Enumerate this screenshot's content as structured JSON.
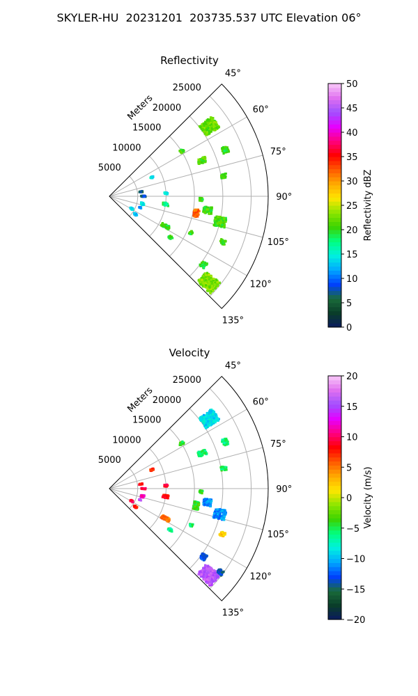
{
  "figure": {
    "title": "SKYLER-HU  20231201  203735.537 UTC Elevation 06°",
    "colors": {
      "grid": "#b0b0b0",
      "frame": "#000000",
      "background": "#ffffff"
    }
  },
  "chart_data": [
    {
      "type": "polar-sector",
      "title": "Reflectivity",
      "radial_axis_label": "Meters",
      "radial_ticks": [
        5000,
        10000,
        15000,
        20000,
        25000
      ],
      "radial_tick_labels": [
        "5000",
        "10000",
        "15000",
        "20000",
        "25000"
      ],
      "rlim": [
        0,
        28000
      ],
      "theta_range_deg": [
        45,
        135
      ],
      "theta_ticks": [
        45,
        60,
        75,
        90,
        105,
        120,
        135
      ],
      "theta_tick_labels": [
        "45°",
        "60°",
        "75°",
        "90°",
        "105°",
        "120°",
        "135°"
      ],
      "grid": true,
      "colorbar": {
        "label": "Reflectivity dBZ",
        "range": [
          0,
          50
        ],
        "ticks": [
          0,
          5,
          10,
          15,
          20,
          25,
          30,
          35,
          40,
          45,
          50
        ],
        "tick_labels": [
          "0",
          "5",
          "10",
          "15",
          "20",
          "25",
          "30",
          "35",
          "40",
          "45",
          "50"
        ],
        "colormap_stops": [
          "#0a1a5e",
          "#0a3d2a",
          "#1a6b3a",
          "#0040ff",
          "#00a8ff",
          "#00f0e0",
          "#00ff80",
          "#3cd200",
          "#8ce600",
          "#ffe600",
          "#ffaa00",
          "#ff5a00",
          "#ff0000",
          "#ff0080",
          "#e600ff",
          "#a050ff",
          "#e070f0",
          "#f8c8f8"
        ]
      },
      "echoes": [
        {
          "az": 55,
          "r": 21500,
          "dr": 2800,
          "daz": 6,
          "value": 22
        },
        {
          "az": 68,
          "r": 22000,
          "dr": 1000,
          "daz": 3,
          "value": 20
        },
        {
          "az": 58,
          "r": 15000,
          "dr": 800,
          "daz": 2,
          "value": 21
        },
        {
          "az": 69,
          "r": 17500,
          "dr": 1500,
          "daz": 3,
          "value": 21
        },
        {
          "az": 80,
          "r": 20500,
          "dr": 1000,
          "daz": 2,
          "value": 20
        },
        {
          "az": 92,
          "r": 16200,
          "dr": 600,
          "daz": 2,
          "value": 20
        },
        {
          "az": 98,
          "r": 17500,
          "dr": 1500,
          "daz": 4,
          "value": 21
        },
        {
          "az": 103,
          "r": 20000,
          "dr": 2000,
          "daz": 5,
          "value": 21
        },
        {
          "az": 101,
          "r": 15600,
          "dr": 1000,
          "daz": 5,
          "value": 32
        },
        {
          "az": 114,
          "r": 15800,
          "dr": 600,
          "daz": 2,
          "value": 20
        },
        {
          "az": 112,
          "r": 21500,
          "dr": 1000,
          "daz": 2,
          "value": 21
        },
        {
          "az": 126,
          "r": 20500,
          "dr": 1000,
          "daz": 3,
          "value": 20
        },
        {
          "az": 131,
          "r": 23200,
          "dr": 3200,
          "daz": 6,
          "value": 23
        },
        {
          "az": 118,
          "r": 11200,
          "dr": 1500,
          "daz": 3,
          "value": 20
        },
        {
          "az": 98,
          "r": 10000,
          "dr": 1000,
          "daz": 3,
          "value": 18
        },
        {
          "az": 87,
          "r": 10000,
          "dr": 600,
          "daz": 2,
          "value": 14
        },
        {
          "az": 66,
          "r": 8200,
          "dr": 600,
          "daz": 2,
          "value": 14
        },
        {
          "az": 103,
          "r": 6000,
          "dr": 600,
          "daz": 4,
          "value": 14
        },
        {
          "az": 110,
          "r": 5800,
          "dr": 400,
          "daz": 2,
          "value": 12
        },
        {
          "az": 119,
          "r": 4500,
          "dr": 600,
          "daz": 3,
          "value": 13
        },
        {
          "az": 90,
          "r": 6000,
          "dr": 800,
          "daz": 2,
          "value": 8
        },
        {
          "az": 82,
          "r": 5600,
          "dr": 600,
          "daz": 2,
          "value": 7
        },
        {
          "az": 125,
          "r": 5600,
          "dr": 600,
          "daz": 3,
          "value": 12
        },
        {
          "az": 124,
          "r": 13000,
          "dr": 800,
          "daz": 2,
          "value": 20
        }
      ]
    },
    {
      "type": "polar-sector",
      "title": "Velocity",
      "radial_axis_label": "Meters",
      "radial_ticks": [
        5000,
        10000,
        15000,
        20000,
        25000
      ],
      "radial_tick_labels": [
        "5000",
        "10000",
        "15000",
        "20000",
        "25000"
      ],
      "rlim": [
        0,
        28000
      ],
      "theta_range_deg": [
        45,
        135
      ],
      "theta_ticks": [
        45,
        60,
        75,
        90,
        105,
        120,
        135
      ],
      "theta_tick_labels": [
        "45°",
        "60°",
        "75°",
        "90°",
        "105°",
        "120°",
        "135°"
      ],
      "grid": true,
      "colorbar": {
        "label": "Velocity (m/s)",
        "range": [
          -20,
          20
        ],
        "ticks": [
          -20,
          -15,
          -10,
          -5,
          0,
          5,
          10,
          15,
          20
        ],
        "tick_labels": [
          "−20",
          "−15",
          "−10",
          "−5",
          "0",
          "5",
          "10",
          "15",
          "20"
        ],
        "colormap_stops": [
          "#0a1a5e",
          "#0a3d2a",
          "#1a6b3a",
          "#0040ff",
          "#00a8ff",
          "#00f0e0",
          "#00ff80",
          "#3cd200",
          "#8ce600",
          "#ffe600",
          "#ffaa00",
          "#ff5a00",
          "#ff0000",
          "#ff0080",
          "#e600ff",
          "#a050ff",
          "#e070f0",
          "#f8c8f8"
        ]
      },
      "echoes": [
        {
          "az": 55,
          "r": 21500,
          "dr": 2800,
          "daz": 6,
          "value": -9
        },
        {
          "az": 68,
          "r": 22000,
          "dr": 1000,
          "daz": 3,
          "value": -6
        },
        {
          "az": 58,
          "r": 15000,
          "dr": 800,
          "daz": 2,
          "value": -4
        },
        {
          "az": 69,
          "r": 17500,
          "dr": 1500,
          "daz": 3,
          "value": -6
        },
        {
          "az": 80,
          "r": 20500,
          "dr": 1000,
          "daz": 2,
          "value": -5
        },
        {
          "az": 92,
          "r": 16200,
          "dr": 600,
          "daz": 2,
          "value": -4
        },
        {
          "az": 98,
          "r": 17500,
          "dr": 1500,
          "daz": 4,
          "value": -11
        },
        {
          "az": 103,
          "r": 20000,
          "dr": 2000,
          "daz": 5,
          "value": -11
        },
        {
          "az": 101,
          "r": 15600,
          "dr": 1000,
          "daz": 5,
          "value": -4
        },
        {
          "az": 114,
          "r": 15800,
          "dr": 600,
          "daz": 2,
          "value": -5
        },
        {
          "az": 112,
          "r": 21500,
          "dr": 1000,
          "daz": 2,
          "value": 2
        },
        {
          "az": 126,
          "r": 20500,
          "dr": 1000,
          "daz": 3,
          "value": -13
        },
        {
          "az": 131,
          "r": 23200,
          "dr": 3200,
          "daz": 6,
          "value": 16
        },
        {
          "az": 127,
          "r": 24500,
          "dr": 1000,
          "daz": 2,
          "value": -14
        },
        {
          "az": 118,
          "r": 11200,
          "dr": 1500,
          "daz": 3,
          "value": 5
        },
        {
          "az": 98,
          "r": 10000,
          "dr": 1000,
          "daz": 3,
          "value": 8
        },
        {
          "az": 87,
          "r": 10000,
          "dr": 600,
          "daz": 2,
          "value": 9
        },
        {
          "az": 66,
          "r": 8200,
          "dr": 600,
          "daz": 2,
          "value": 7
        },
        {
          "az": 103,
          "r": 6000,
          "dr": 600,
          "daz": 4,
          "value": 12
        },
        {
          "az": 110,
          "r": 5800,
          "dr": 400,
          "daz": 2,
          "value": 15
        },
        {
          "az": 119,
          "r": 4500,
          "dr": 600,
          "daz": 3,
          "value": 9
        },
        {
          "az": 90,
          "r": 6000,
          "dr": 800,
          "daz": 2,
          "value": 10
        },
        {
          "az": 82,
          "r": 5600,
          "dr": 600,
          "daz": 2,
          "value": 8
        },
        {
          "az": 125,
          "r": 5600,
          "dr": 600,
          "daz": 3,
          "value": 7
        },
        {
          "az": 124,
          "r": 13000,
          "dr": 800,
          "daz": 2,
          "value": -6
        }
      ]
    }
  ]
}
